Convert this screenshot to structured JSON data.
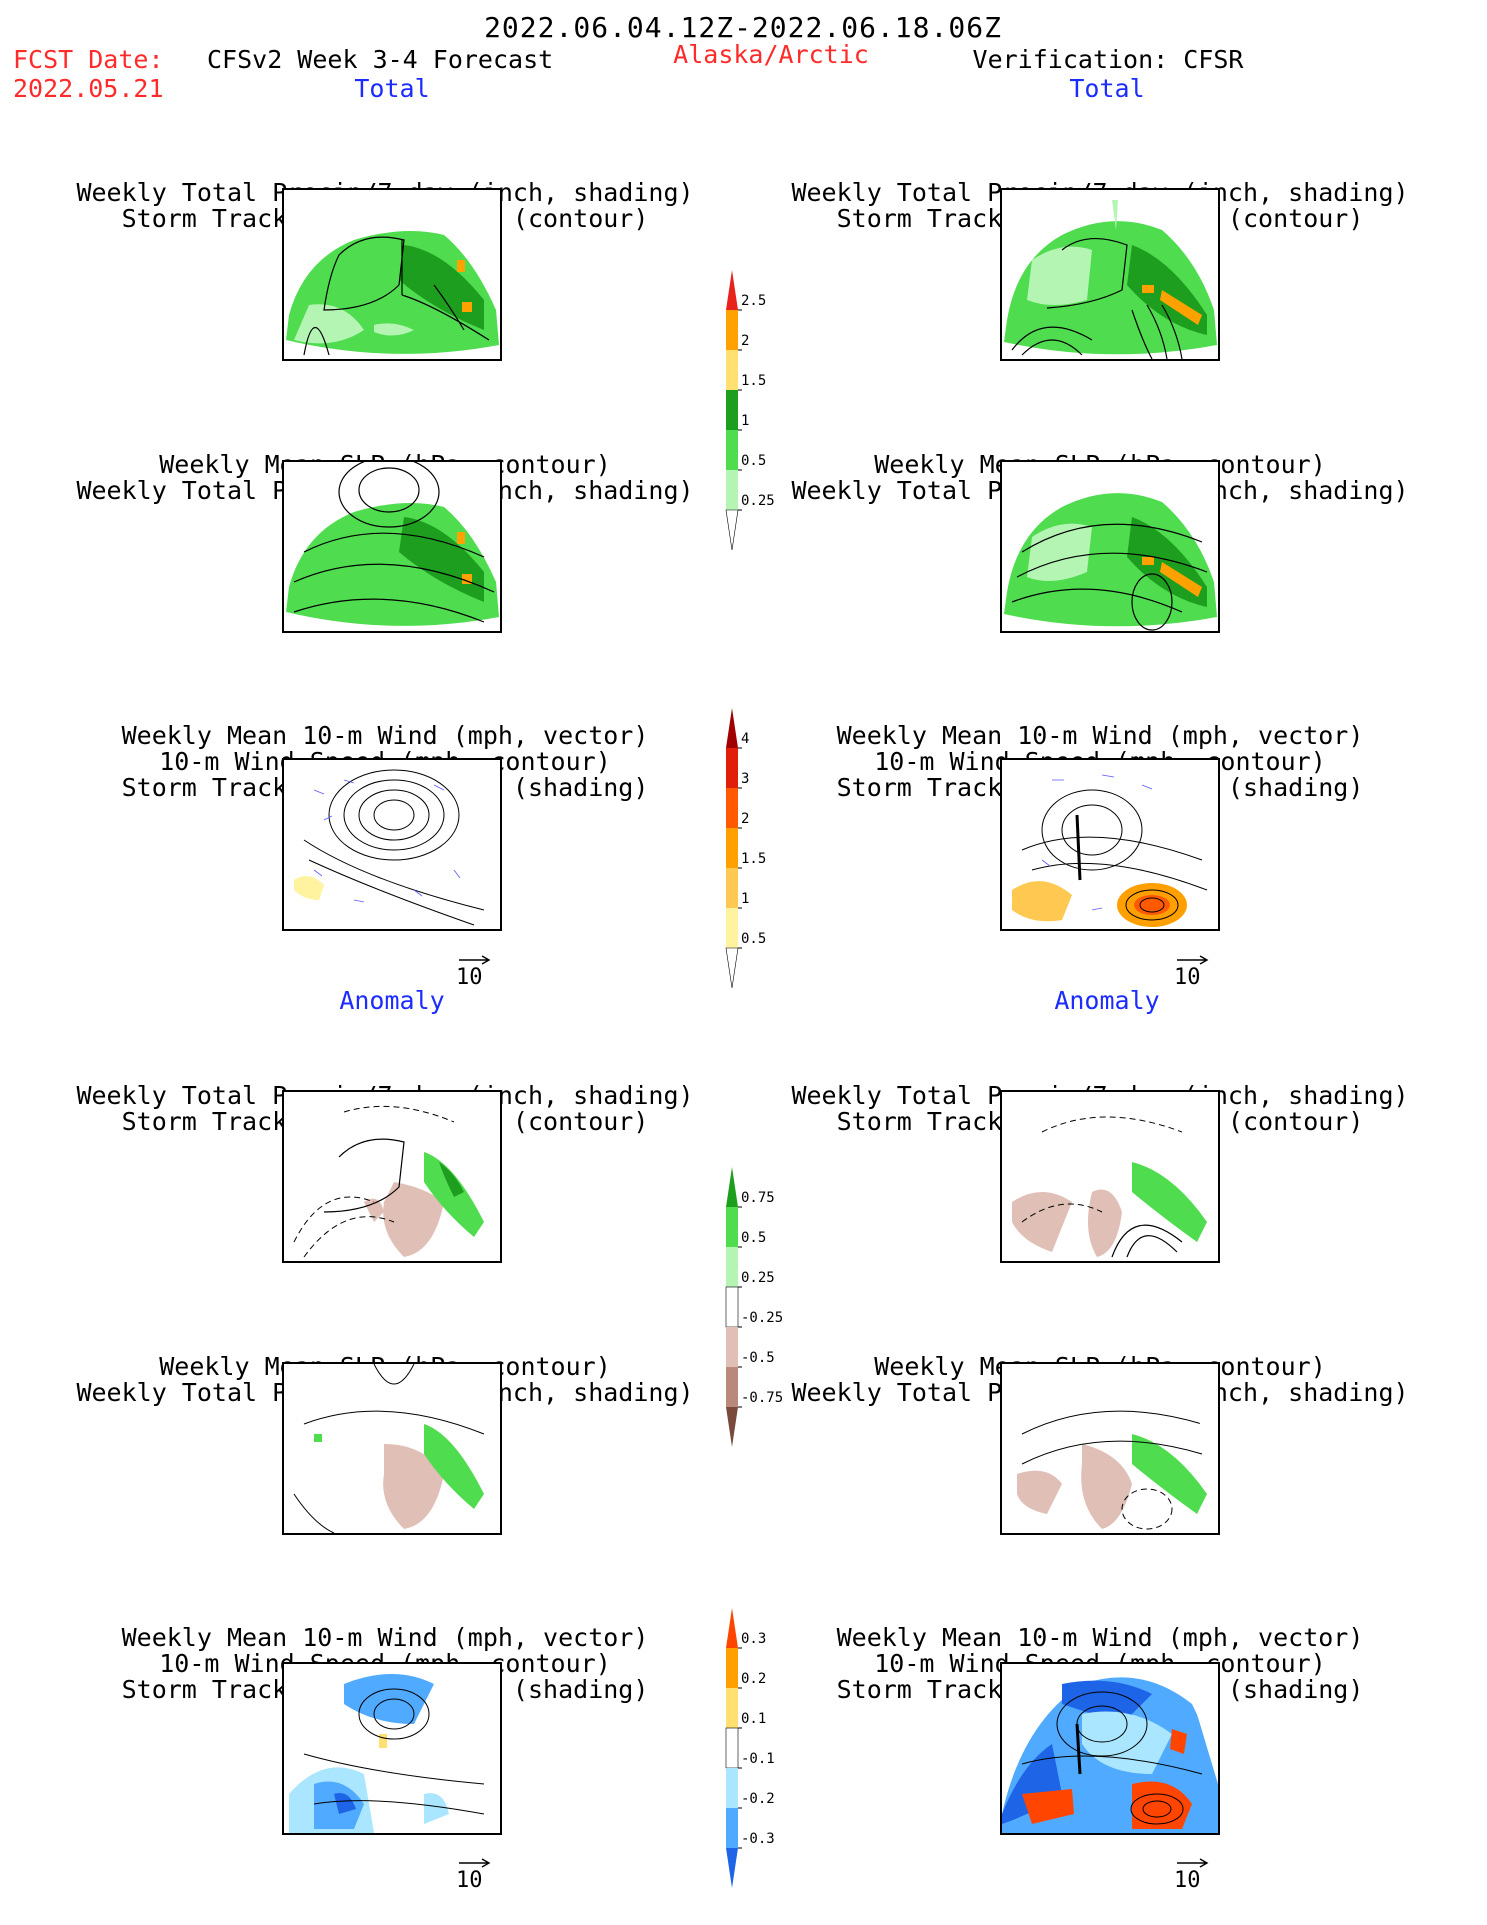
{
  "header": {
    "date_range": "2022.06.04.12Z-2022.06.18.06Z",
    "fcst_label": "FCST Date:",
    "fcst_date": "2022.05.21",
    "forecast_title": "CFSv2 Week 3-4 Forecast",
    "region": "Alaska/Arctic",
    "verification": "Verification: CFSR"
  },
  "sections": {
    "total": "Total",
    "anomaly": "Anomaly"
  },
  "panel_titles": {
    "precip_storm": [
      "Weekly Total Precip/7-day (inch, shading)",
      "Storm Track Density/7-day (contour)"
    ],
    "slp_precip": [
      "Weekly Mean SLP (hPa, contour)",
      "Weekly Total Precip/7-day (inch, shading)"
    ],
    "wind": [
      "Weekly Mean 10-m Wind (mph, vector)",
      "10-m Wind Speed (mph, contour)",
      "Storm Track Density/7-day (shading)"
    ]
  },
  "vector_ref": "10",
  "colorbars": {
    "precip_total": {
      "labels": [
        "2.5",
        "2",
        "1.5",
        "1",
        "0.5",
        "0.25"
      ],
      "colors": [
        "#e8231c",
        "#ffa200",
        "#ffe070",
        "#1e9e1e",
        "#4fdc4f",
        "#b4f5b4",
        "#ffffff"
      ]
    },
    "storm_total": {
      "labels": [
        "4",
        "3",
        "2",
        "1.5",
        "1",
        "0.5"
      ],
      "colors": [
        "#a00000",
        "#e01e0a",
        "#ff5a00",
        "#ffa000",
        "#ffc850",
        "#fff3a0",
        "#ffffff"
      ]
    },
    "precip_anom": {
      "labels": [
        "0.75",
        "0.5",
        "0.25",
        "-0.25",
        "-0.5",
        "-0.75"
      ],
      "colors": [
        "#1e9e1e",
        "#4fdc4f",
        "#b4f5b4",
        "#ffffff",
        "#e0bfb6",
        "#b9897c",
        "#7a4a3c"
      ]
    },
    "storm_anom": {
      "labels": [
        "0.3",
        "0.2",
        "0.1",
        "-0.1",
        "-0.2",
        "-0.3"
      ],
      "colors": [
        "#ff4500",
        "#ffa000",
        "#ffe070",
        "#ffffff",
        "#aae6ff",
        "#50aaff",
        "#1e64e6"
      ]
    }
  }
}
